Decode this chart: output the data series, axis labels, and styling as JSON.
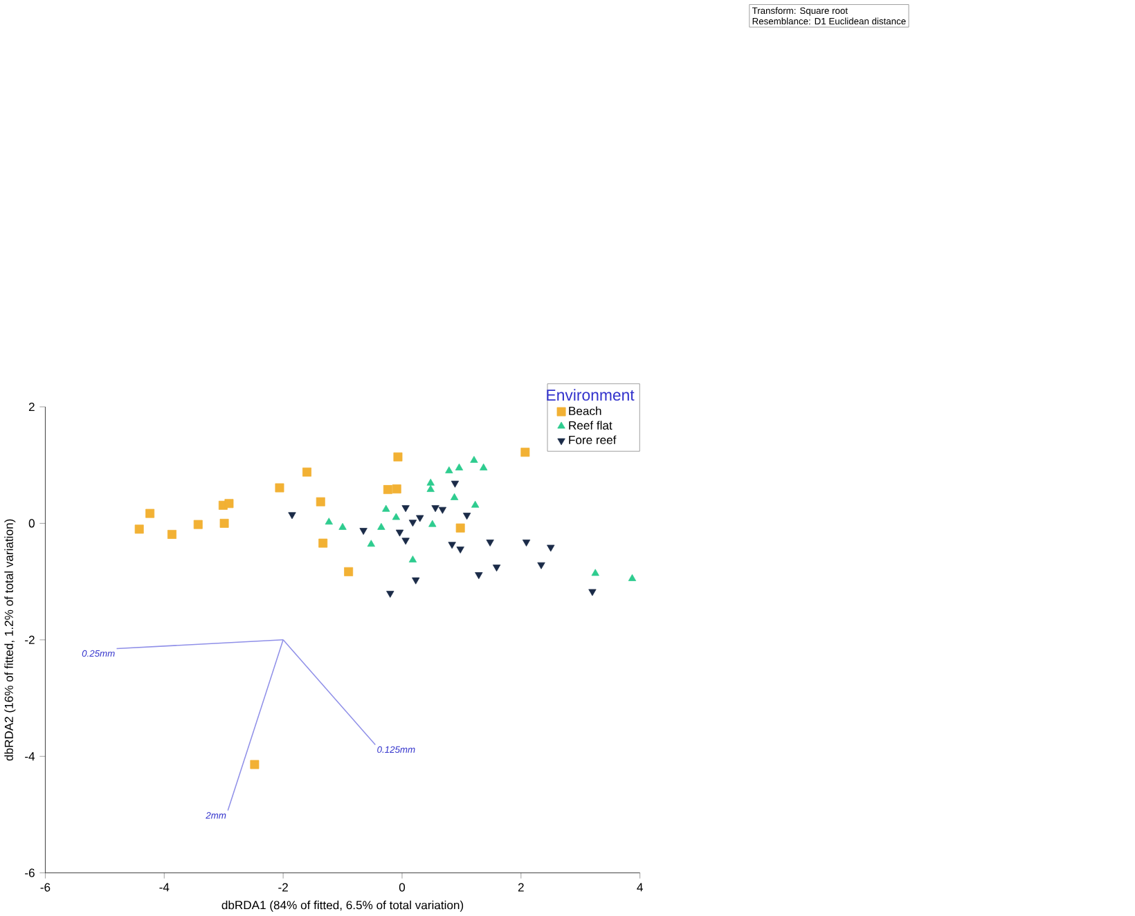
{
  "chart_data": {
    "type": "scatter",
    "xlabel": "dbRDA1 (84% of fitted, 6.5% of total variation)",
    "ylabel": "dbRDA2 (16% of fitted, 1.2% of total variation)",
    "legend_title": "Environment",
    "legend": "top right",
    "grid": false,
    "xlim": [
      -6,
      4
    ],
    "xticks": [
      -6,
      -4,
      -2,
      0,
      2,
      4
    ],
    "ylim": [
      -6,
      2
    ],
    "yticks": [
      -6,
      -4,
      -2,
      0,
      2
    ],
    "series": [
      {
        "name": "Beach",
        "color": "#f2b134",
        "marker": "square",
        "x": [
          -4.42,
          -4.24,
          -3.87,
          -3.43,
          -2.99,
          -3.01,
          -2.91,
          -2.06,
          -1.6,
          -1.37,
          -1.33,
          -0.9,
          -0.24,
          -0.09,
          -0.07,
          0.98,
          2.07,
          -2.48
        ],
        "values": [
          -0.1,
          0.17,
          -0.19,
          -0.02,
          0.0,
          0.31,
          0.34,
          0.61,
          0.88,
          0.37,
          -0.34,
          -0.83,
          0.58,
          0.59,
          1.14,
          -0.08,
          1.22,
          -4.14
        ]
      },
      {
        "name": "Reef flat",
        "color": "#2ecc8f",
        "marker": "triangle",
        "x": [
          1.21,
          1.37,
          0.79,
          0.96,
          0.48,
          0.48,
          0.88,
          1.23,
          -0.27,
          -0.1,
          0.51,
          -0.35,
          -1.23,
          -1.0,
          -0.52,
          0.18,
          3.25,
          3.87
        ],
        "values": [
          1.08,
          0.95,
          0.9,
          0.95,
          0.69,
          0.58,
          0.44,
          0.31,
          0.24,
          0.1,
          -0.02,
          -0.07,
          0.02,
          -0.07,
          -0.36,
          -0.63,
          -0.86,
          -0.95
        ]
      },
      {
        "name": "Fore reef",
        "color": "#1b2b48",
        "marker": "triangle-down",
        "x": [
          0.89,
          -0.65,
          0.06,
          0.3,
          0.18,
          0.56,
          0.68,
          1.09,
          -0.04,
          0.06,
          0.84,
          0.98,
          1.48,
          2.09,
          2.5,
          1.59,
          2.34,
          1.29,
          0.23,
          -0.2,
          3.2,
          -1.85
        ],
        "values": [
          0.69,
          -0.12,
          0.27,
          0.1,
          0.02,
          0.27,
          0.24,
          0.14,
          -0.15,
          -0.29,
          -0.36,
          -0.44,
          -0.32,
          -0.32,
          -0.41,
          -0.75,
          -0.71,
          -0.88,
          -0.97,
          -1.2,
          -1.17,
          0.15
        ]
      },
      {
        "type": "line",
        "color": "#8f8fe8",
        "x": [
          -2,
          -4.8
        ],
        "values": [
          -2,
          -2.15
        ]
      },
      {
        "type": "line",
        "color": "#8f8fe8",
        "x": [
          -2,
          -0.45
        ],
        "values": [
          -2,
          -3.8
        ]
      },
      {
        "type": "line",
        "color": "#8f8fe8",
        "x": [
          -2,
          -2.93
        ],
        "values": [
          -2,
          -4.93
        ]
      }
    ],
    "annotations": [
      "Transform: Square root",
      "Resemblance: D1 Euclidean distance",
      {
        "text": "0.25mm",
        "x": -4.8,
        "y": -2.15
      },
      {
        "text": "0.125mm",
        "x": -0.45,
        "y": -3.8
      },
      {
        "text": "2mm",
        "x": -2.93,
        "y": -4.93
      }
    ]
  }
}
